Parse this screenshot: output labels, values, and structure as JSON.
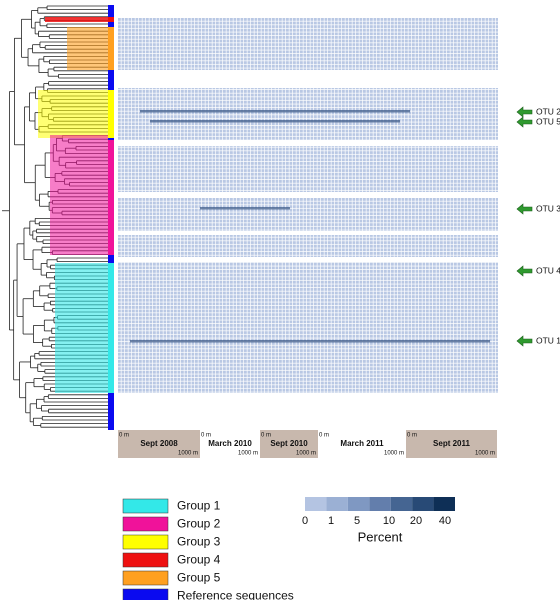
{
  "otu_arrows": [
    "OTU 2",
    "OTU 5",
    "OTU 3",
    "OTU 4",
    "OTU 1"
  ],
  "samples": [
    {
      "label": "Sept 2008",
      "start": "0 m",
      "end": "1000 m",
      "shaded": true
    },
    {
      "label": "March 2010",
      "start": "0 m",
      "end": "1000 m",
      "shaded": false
    },
    {
      "label": "Sept 2010",
      "start": "0 m",
      "end": "1000 m",
      "shaded": true
    },
    {
      "label": "March 2011",
      "start": "0 m",
      "end": "1000 m",
      "shaded": false
    },
    {
      "label": "Sept 2011",
      "start": "0 m",
      "end": "1000 m",
      "shaded": true
    }
  ],
  "legend": [
    {
      "label": "Group 1",
      "color": "#33e8e8"
    },
    {
      "label": "Group 2",
      "color": "#f0129a"
    },
    {
      "label": "Group 3",
      "color": "#ffff00"
    },
    {
      "label": "Group 4",
      "color": "#ee1111"
    },
    {
      "label": "Group 5",
      "color": "#ffa020"
    },
    {
      "label": "Reference sequences",
      "color": "#0a0af0"
    }
  ],
  "color_scale": {
    "title": "Percent",
    "ticks": [
      "0",
      "1",
      "5",
      "10",
      "20",
      "40"
    ],
    "colors": [
      "#b4c4e2",
      "#9bb0d4",
      "#7f98c2",
      "#637eac",
      "#456592",
      "#284a76",
      "#0e2f56"
    ]
  }
}
